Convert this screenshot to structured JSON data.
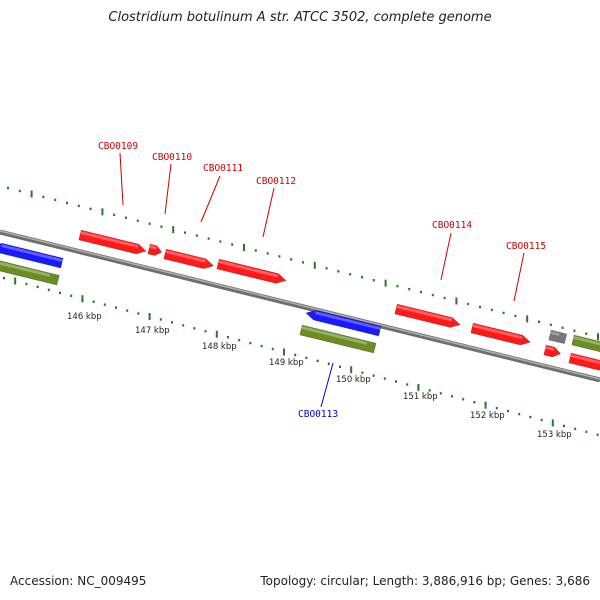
{
  "title": "Clostridium botulinum A str. ATCC 3502, complete genome",
  "footer": {
    "accession": "Accession: NC_009495",
    "stats": "Topology: circular; Length: 3,886,916 bp; Genes: 3,686"
  },
  "colors": {
    "backbone": "#8a8a8a",
    "tick": "#1e7d1e",
    "forward_gene": "#ff1a1a",
    "reverse_gene": "#1a1aff",
    "rna_feature": "#6b8e23",
    "other_feature": "#777777",
    "label_forward": "#cc0000",
    "label_reverse": "#0000cc"
  },
  "scale_labels": [
    "146 kbp",
    "147 kbp",
    "148 kbp",
    "149 kbp",
    "150 kbp",
    "151 kbp",
    "152 kbp",
    "153 kbp"
  ],
  "gene_labels": [
    {
      "name": "CBO0109",
      "strand": "forward"
    },
    {
      "name": "CBO0110",
      "strand": "forward"
    },
    {
      "name": "CBO0111",
      "strand": "forward"
    },
    {
      "name": "CBO0112",
      "strand": "forward"
    },
    {
      "name": "CBO0113",
      "strand": "reverse"
    },
    {
      "name": "CBO0114",
      "strand": "forward"
    },
    {
      "name": "CBO0115",
      "strand": "forward"
    }
  ]
}
